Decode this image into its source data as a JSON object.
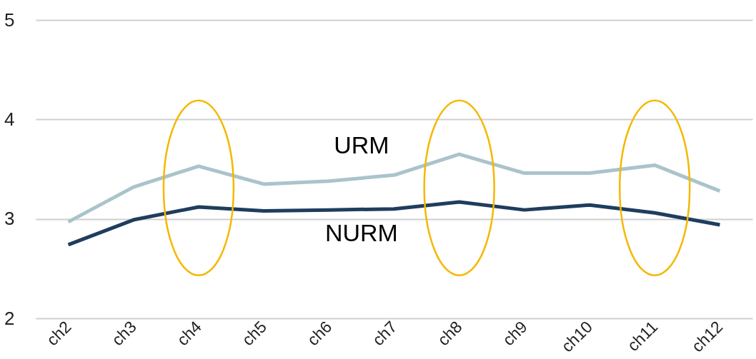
{
  "chart_data": {
    "type": "line",
    "categories": [
      "ch2",
      "ch3",
      "ch4",
      "ch5",
      "ch6",
      "ch7",
      "ch8",
      "ch9",
      "ch10",
      "ch11",
      "ch12"
    ],
    "series": [
      {
        "name": "URM",
        "color": "#a9c4ca",
        "values": [
          2.97,
          3.32,
          3.53,
          3.35,
          3.38,
          3.44,
          3.65,
          3.46,
          3.46,
          3.54,
          3.28
        ]
      },
      {
        "name": "NURM",
        "color": "#1f3d5e",
        "values": [
          2.74,
          2.99,
          3.12,
          3.08,
          3.09,
          3.1,
          3.17,
          3.09,
          3.14,
          3.06,
          2.94
        ]
      }
    ],
    "ylim": [
      2,
      5
    ],
    "yticks": [
      2,
      3,
      4,
      5
    ],
    "grid": "y",
    "line_style": "solid",
    "legend": false,
    "marker": "none"
  }
}
